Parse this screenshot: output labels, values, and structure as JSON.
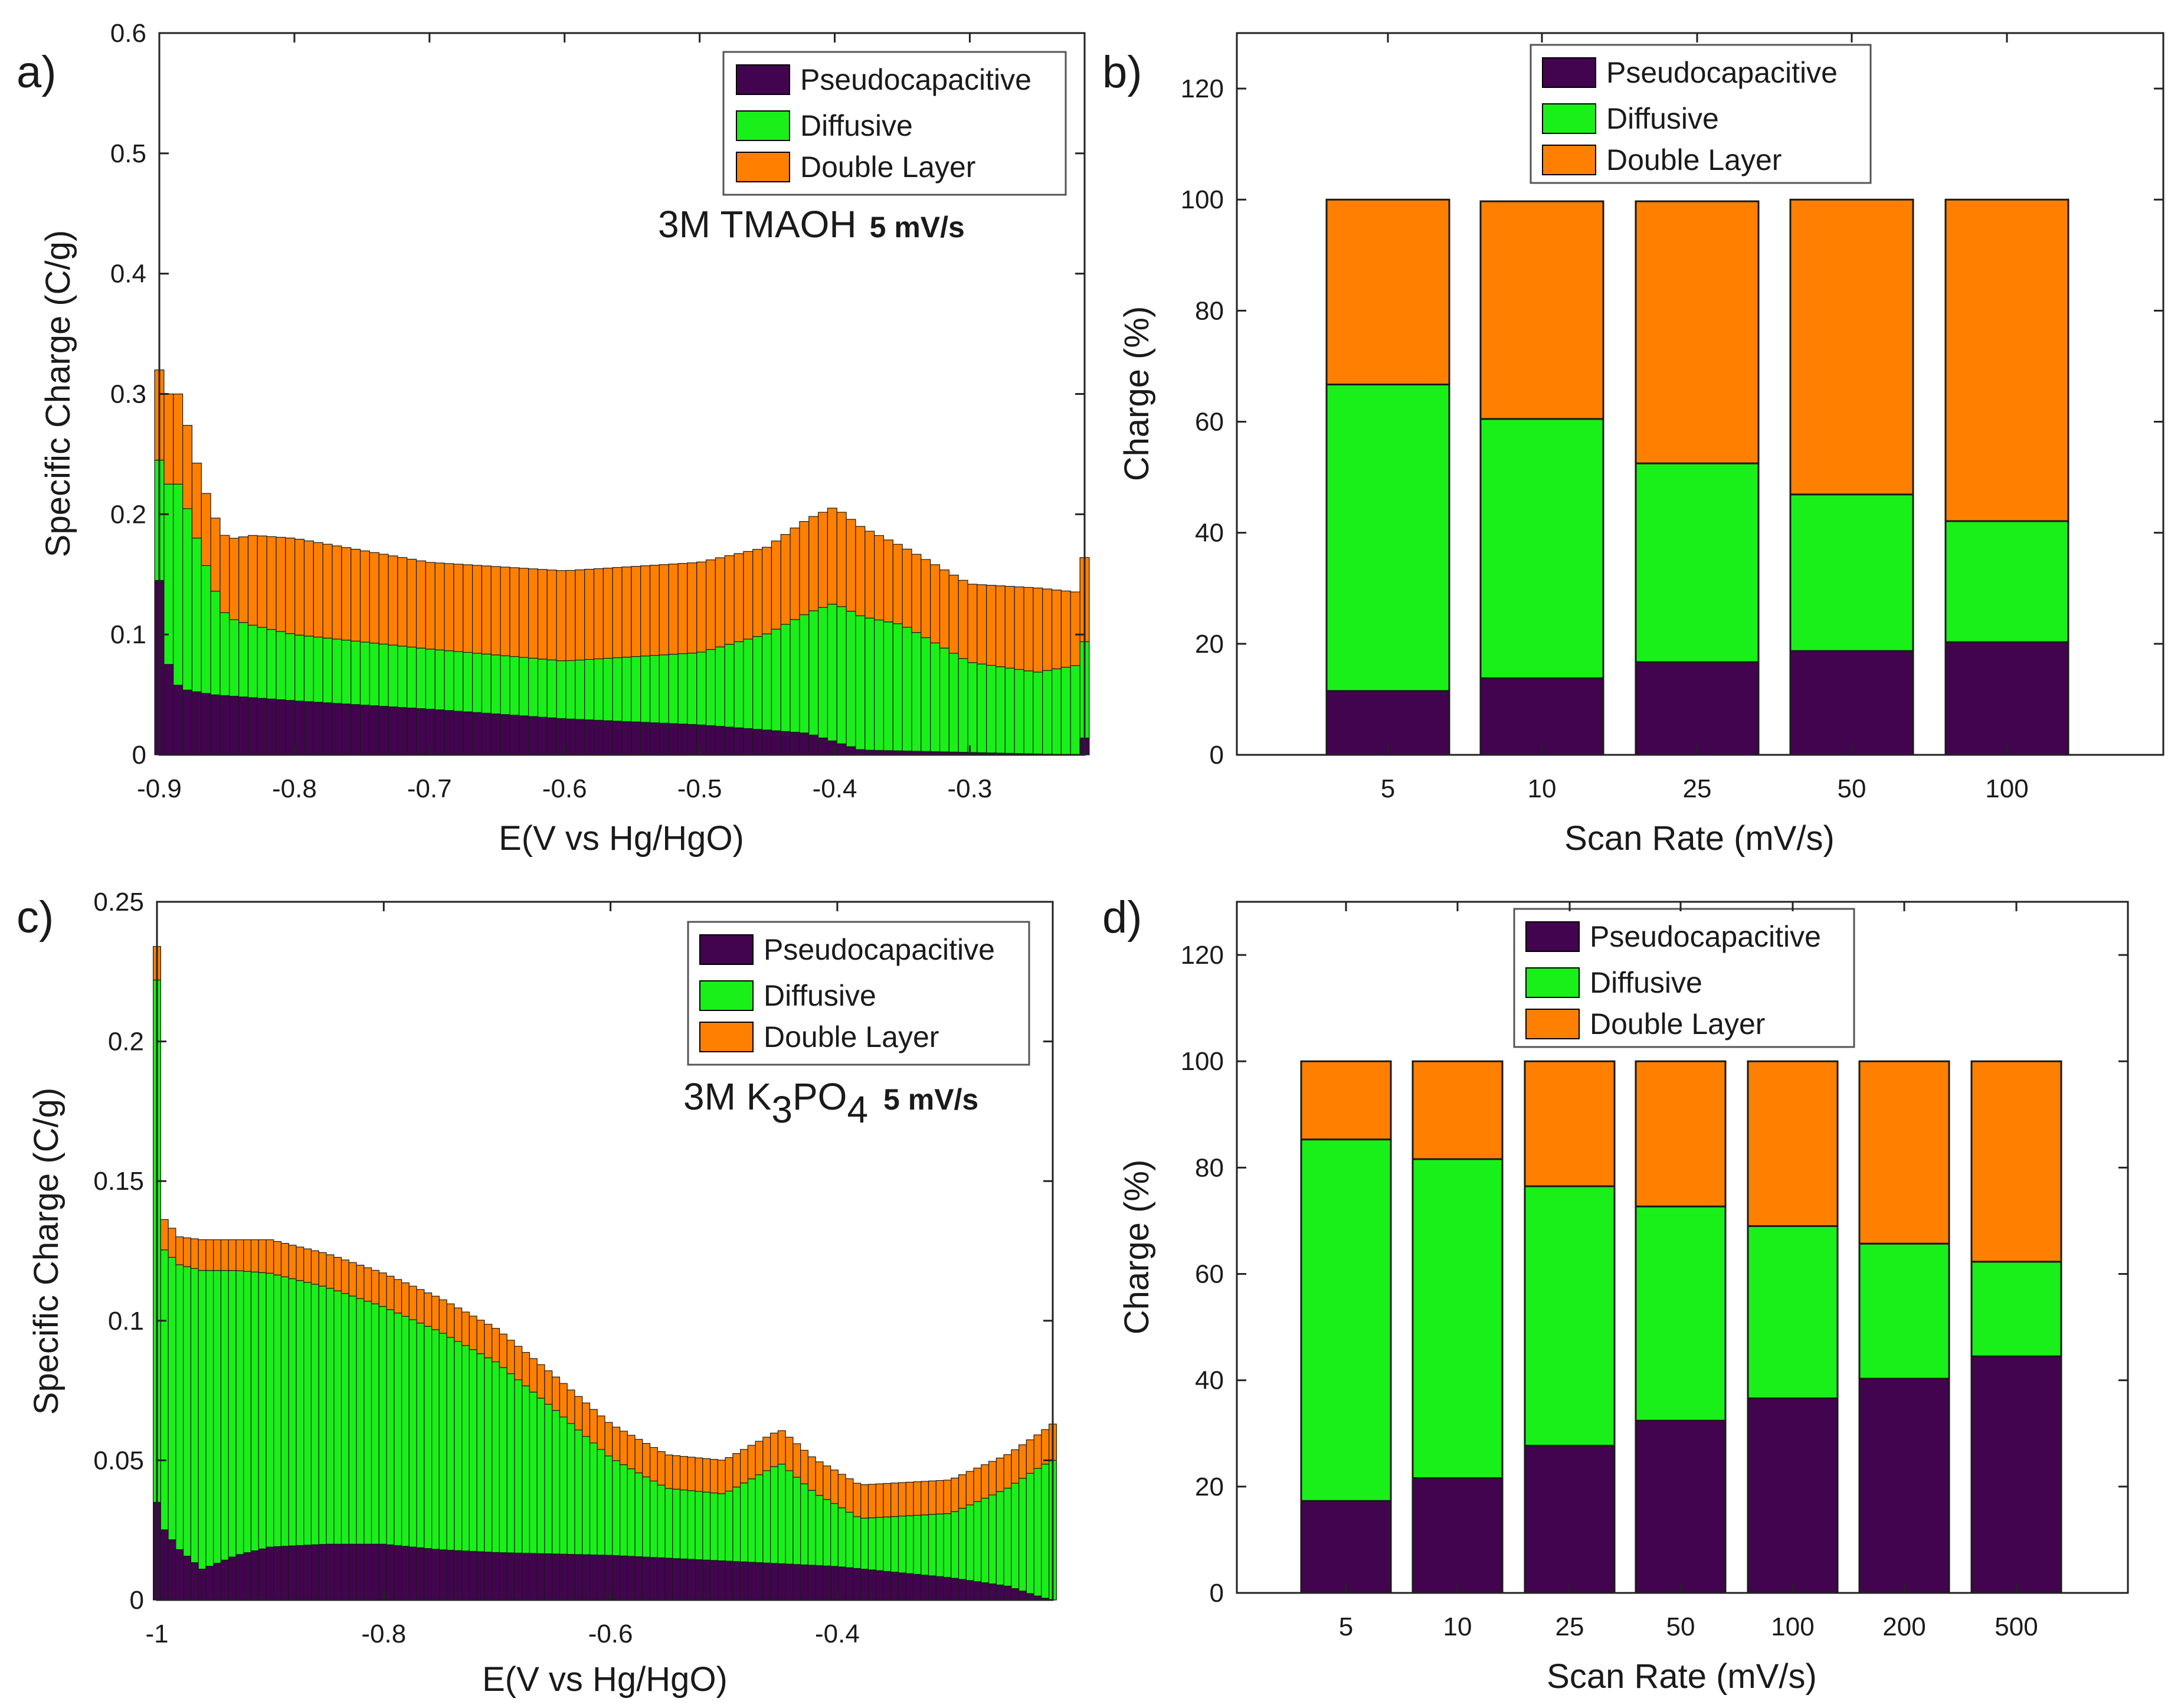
{
  "colors": {
    "pseudocapacitive": "#42044f",
    "diffusive": "#19f019",
    "double_layer": "#ff8000"
  },
  "chart_data": [
    {
      "id": "a",
      "type": "bar",
      "stacked": true,
      "panel_label": "a)",
      "xlabel": "E(V vs Hg/HgO)",
      "ylabel": "Specific Charge (C/g)",
      "xlim": [
        -0.9,
        -0.215
      ],
      "ylim": [
        0,
        0.6
      ],
      "xticks": [
        "-0.9",
        "-0.8",
        "-0.7",
        "-0.6",
        "-0.5",
        "-0.4",
        "-0.3"
      ],
      "xtick_values": [
        -0.9,
        -0.8,
        -0.7,
        -0.6,
        -0.5,
        -0.4,
        -0.3
      ],
      "yticks": [
        "0",
        "0.1",
        "0.2",
        "0.3",
        "0.4",
        "0.5",
        "0.6"
      ],
      "ytick_values": [
        0,
        0.1,
        0.2,
        0.3,
        0.4,
        0.5,
        0.6
      ],
      "annotation": "3M TMAOH",
      "annotation_bold": "5 mV/s",
      "legend": [
        "Pseudocapacitive",
        "Diffusive",
        "Double Layer"
      ],
      "legend_position": "top-right",
      "bar_count": 100,
      "x_range": [
        -0.9,
        -0.215
      ],
      "profile": {
        "pseudocapacitive": [
          [
            -0.9,
            0.145
          ],
          [
            -0.895,
            0.08
          ],
          [
            -0.885,
            0.055
          ],
          [
            -0.86,
            0.05
          ],
          [
            -0.8,
            0.045
          ],
          [
            -0.7,
            0.038
          ],
          [
            -0.6,
            0.03
          ],
          [
            -0.5,
            0.025
          ],
          [
            -0.42,
            0.018
          ],
          [
            -0.38,
            0.004
          ],
          [
            -0.22,
            0.0
          ],
          [
            -0.216,
            0.014
          ]
        ],
        "diffusive": [
          [
            -0.9,
            0.1
          ],
          [
            -0.895,
            0.145
          ],
          [
            -0.885,
            0.17
          ],
          [
            -0.87,
            0.12
          ],
          [
            -0.86,
            0.09
          ],
          [
            -0.85,
            0.065
          ],
          [
            -0.83,
            0.06
          ],
          [
            -0.8,
            0.055
          ],
          [
            -0.7,
            0.05
          ],
          [
            -0.6,
            0.048
          ],
          [
            -0.5,
            0.06
          ],
          [
            -0.45,
            0.08
          ],
          [
            -0.42,
            0.1
          ],
          [
            -0.4,
            0.115
          ],
          [
            -0.35,
            0.105
          ],
          [
            -0.3,
            0.075
          ],
          [
            -0.25,
            0.068
          ],
          [
            -0.218,
            0.075
          ],
          [
            -0.216,
            0.08
          ]
        ],
        "double_layer": [
          [
            -0.9,
            0.075
          ],
          [
            -0.895,
            0.075
          ],
          [
            -0.885,
            0.075
          ],
          [
            -0.87,
            0.06
          ],
          [
            -0.86,
            0.06
          ],
          [
            -0.85,
            0.065
          ],
          [
            -0.83,
            0.075
          ],
          [
            -0.8,
            0.08
          ],
          [
            -0.7,
            0.072
          ],
          [
            -0.6,
            0.075
          ],
          [
            -0.5,
            0.075
          ],
          [
            -0.45,
            0.072
          ],
          [
            -0.42,
            0.078
          ],
          [
            -0.4,
            0.08
          ],
          [
            -0.35,
            0.065
          ],
          [
            -0.3,
            0.065
          ],
          [
            -0.25,
            0.07
          ],
          [
            -0.218,
            0.06
          ],
          [
            -0.216,
            0.07
          ]
        ]
      }
    },
    {
      "id": "b",
      "type": "bar",
      "stacked": true,
      "panel_label": "b)",
      "xlabel": "Scan Rate (mV/s)",
      "ylabel": "Charge (%)",
      "ylim": [
        0,
        130
      ],
      "yticks": [
        "0",
        "20",
        "40",
        "60",
        "80",
        "100",
        "120"
      ],
      "ytick_values": [
        0,
        20,
        40,
        60,
        80,
        100,
        120
      ],
      "categories": [
        "5",
        "10",
        "25",
        "50",
        "100"
      ],
      "legend": [
        "Pseudocapacitive",
        "Diffusive",
        "Double Layer"
      ],
      "legend_position": "top-left",
      "series": [
        {
          "name": "Pseudocapacitive",
          "values": [
            11.5,
            13.8,
            16.7,
            18.7,
            20.3
          ]
        },
        {
          "name": "Diffusive",
          "values": [
            55.2,
            46.7,
            35.8,
            28.2,
            21.8
          ]
        },
        {
          "name": "Double Layer",
          "values": [
            33.3,
            39.2,
            47.2,
            53.1,
            57.9
          ]
        }
      ]
    },
    {
      "id": "c",
      "type": "bar",
      "stacked": true,
      "panel_label": "c)",
      "xlabel": "E(V vs Hg/HgO)",
      "ylabel": "Specific Charge (C/g)",
      "xlim": [
        -1.0,
        -0.21
      ],
      "ylim": [
        0,
        0.25
      ],
      "xticks": [
        "-1",
        "-0.8",
        "-0.6",
        "-0.4"
      ],
      "xtick_values": [
        -1.0,
        -0.8,
        -0.6,
        -0.4
      ],
      "yticks": [
        "0",
        "0.05",
        "0.1",
        "0.15",
        "0.2",
        "0.25"
      ],
      "ytick_values": [
        0,
        0.05,
        0.1,
        0.15,
        0.2,
        0.25
      ],
      "annotation_prefix": "3M K",
      "annotation_sub1": "3",
      "annotation_mid": "PO",
      "annotation_sub2": "4",
      "annotation_bold": "5 mV/s",
      "legend": [
        "Pseudocapacitive",
        "Diffusive",
        "Double Layer"
      ],
      "legend_position": "top-right",
      "bar_count": 120,
      "x_range": [
        -1.0,
        -0.21
      ],
      "profile": {
        "pseudocapacitive": [
          [
            -1.0,
            0.035
          ],
          [
            -0.995,
            0.026
          ],
          [
            -0.98,
            0.018
          ],
          [
            -0.96,
            0.011
          ],
          [
            -0.93,
            0.016
          ],
          [
            -0.9,
            0.019
          ],
          [
            -0.85,
            0.02
          ],
          [
            -0.8,
            0.02
          ],
          [
            -0.75,
            0.018
          ],
          [
            -0.7,
            0.017
          ],
          [
            -0.6,
            0.016
          ],
          [
            -0.5,
            0.014
          ],
          [
            -0.4,
            0.012
          ],
          [
            -0.3,
            0.008
          ],
          [
            -0.25,
            0.005
          ],
          [
            -0.22,
            0.001
          ],
          [
            -0.21,
            0.0
          ]
        ],
        "diffusive": [
          [
            -1.0,
            0.187
          ],
          [
            -0.995,
            0.1
          ],
          [
            -0.98,
            0.102
          ],
          [
            -0.96,
            0.107
          ],
          [
            -0.93,
            0.102
          ],
          [
            -0.9,
            0.098
          ],
          [
            -0.85,
            0.092
          ],
          [
            -0.8,
            0.085
          ],
          [
            -0.75,
            0.078
          ],
          [
            -0.7,
            0.068
          ],
          [
            -0.65,
            0.052
          ],
          [
            -0.6,
            0.035
          ],
          [
            -0.55,
            0.025
          ],
          [
            -0.5,
            0.024
          ],
          [
            -0.45,
            0.036
          ],
          [
            -0.42,
            0.026
          ],
          [
            -0.38,
            0.018
          ],
          [
            -0.3,
            0.023
          ],
          [
            -0.25,
            0.035
          ],
          [
            -0.22,
            0.047
          ],
          [
            -0.21,
            0.05
          ]
        ],
        "double_layer": [
          [
            -1.0,
            0.012
          ],
          [
            -0.995,
            0.011
          ],
          [
            -0.98,
            0.01
          ],
          [
            -0.96,
            0.011
          ],
          [
            -0.93,
            0.011
          ],
          [
            -0.9,
            0.012
          ],
          [
            -0.85,
            0.012
          ],
          [
            -0.8,
            0.012
          ],
          [
            -0.75,
            0.012
          ],
          [
            -0.7,
            0.012
          ],
          [
            -0.65,
            0.012
          ],
          [
            -0.6,
            0.012
          ],
          [
            -0.55,
            0.012
          ],
          [
            -0.5,
            0.012
          ],
          [
            -0.45,
            0.012
          ],
          [
            -0.42,
            0.012
          ],
          [
            -0.38,
            0.012
          ],
          [
            -0.3,
            0.012
          ],
          [
            -0.25,
            0.012
          ],
          [
            -0.22,
            0.012
          ],
          [
            -0.21,
            0.013
          ]
        ]
      }
    },
    {
      "id": "d",
      "type": "bar",
      "stacked": true,
      "panel_label": "d)",
      "xlabel": "Scan Rate (mV/s)",
      "ylabel": "Charge (%)",
      "ylim": [
        0,
        130
      ],
      "yticks": [
        "0",
        "20",
        "40",
        "60",
        "80",
        "100",
        "120"
      ],
      "ytick_values": [
        0,
        20,
        40,
        60,
        80,
        100,
        120
      ],
      "categories": [
        "5",
        "10",
        "25",
        "50",
        "100",
        "200",
        "500"
      ],
      "legend": [
        "Pseudocapacitive",
        "Diffusive",
        "Double Layer"
      ],
      "legend_position": "top-left",
      "series": [
        {
          "name": "Pseudocapacitive",
          "values": [
            17.3,
            21.6,
            27.7,
            32.4,
            36.6,
            40.3,
            44.5
          ]
        },
        {
          "name": "Diffusive",
          "values": [
            68.0,
            60.0,
            48.8,
            40.3,
            32.4,
            25.4,
            17.8
          ]
        },
        {
          "name": "Double Layer",
          "values": [
            14.7,
            18.4,
            23.5,
            27.3,
            31.0,
            34.3,
            37.7
          ]
        }
      ]
    }
  ]
}
